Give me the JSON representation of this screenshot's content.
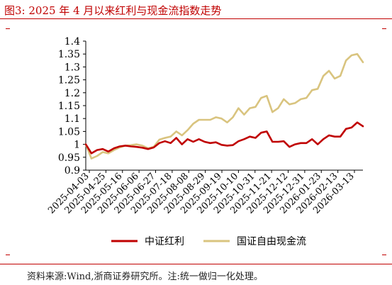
{
  "title": "图3:  2025 年 4 月以来红利与现金流指数走势",
  "source": "资料来源:Wind,浙商证券研究所。注:统一做归一化处理。",
  "colors": {
    "accent": "#c00000",
    "series_red": "#c00000",
    "series_gold": "#d9c47f"
  },
  "chart_data": {
    "type": "line",
    "xlabel": "",
    "ylabel": "",
    "ylim": [
      0.9,
      1.4
    ],
    "yticks": [
      0.9,
      0.95,
      1,
      1.05,
      1.1,
      1.15,
      1.2,
      1.25,
      1.3,
      1.35,
      1.4
    ],
    "ytick_labels": [
      "0.9",
      "0.95",
      "1",
      "1.05",
      "1.1",
      "1.15",
      "1.2",
      "1.25",
      "1.3",
      "1.35",
      "1.4"
    ],
    "xtick_labels": [
      "2025-04-03",
      "2025-04-25",
      "2025-05-16",
      "2025-06-06",
      "2025-06-27",
      "2025-07-18",
      "2025-08-08",
      "2025-08-29",
      "2025-09-19",
      "2025-10-10",
      "2025-10-31",
      "2025-11-21",
      "2025-12-12",
      "2025-12-31",
      "2026-01-23",
      "2026-02-13",
      "2026-03-13"
    ],
    "legend_position": "bottom",
    "grid": false,
    "series": [
      {
        "name": "中证红利",
        "color": "#c00000",
        "values": [
          1.0,
          0.965,
          0.978,
          0.982,
          0.972,
          0.985,
          0.992,
          0.995,
          0.992,
          0.99,
          0.987,
          0.982,
          0.988,
          1.005,
          1.012,
          1.005,
          1.025,
          1.0,
          1.02,
          1.01,
          1.02,
          1.01,
          1.005,
          1.008,
          0.998,
          0.995,
          0.997,
          1.012,
          1.02,
          1.03,
          1.025,
          1.045,
          1.05,
          1.01,
          1.01,
          1.012,
          0.99,
          1.0,
          1.005,
          1.005,
          1.02,
          1.0,
          1.02,
          1.035,
          1.03,
          1.03,
          1.06,
          1.065,
          1.085,
          1.07
        ]
      },
      {
        "name": "国证自由现金流",
        "color": "#d9c47f",
        "values": [
          1.0,
          0.945,
          0.955,
          0.97,
          0.965,
          0.978,
          0.988,
          0.995,
          0.997,
          1.0,
          0.995,
          0.985,
          0.99,
          1.018,
          1.025,
          1.03,
          1.05,
          1.035,
          1.055,
          1.08,
          1.095,
          1.095,
          1.095,
          1.105,
          1.1,
          1.085,
          1.105,
          1.14,
          1.115,
          1.14,
          1.145,
          1.18,
          1.188,
          1.125,
          1.14,
          1.175,
          1.155,
          1.16,
          1.175,
          1.18,
          1.21,
          1.215,
          1.265,
          1.285,
          1.255,
          1.265,
          1.325,
          1.345,
          1.35,
          1.318
        ]
      }
    ]
  }
}
